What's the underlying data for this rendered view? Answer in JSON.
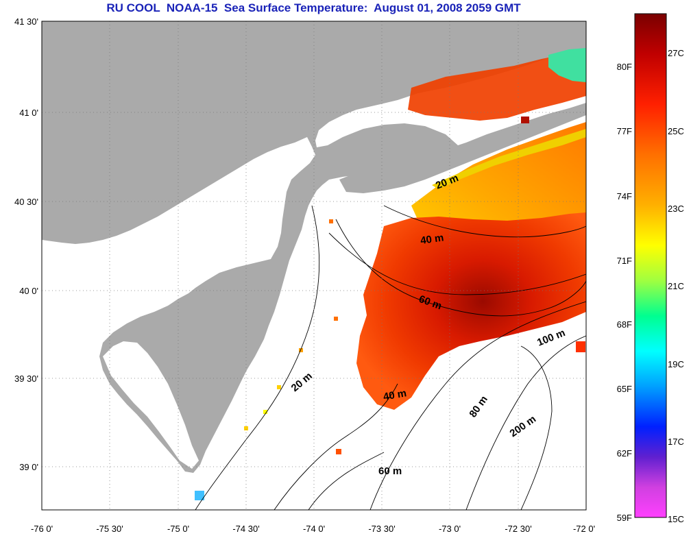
{
  "title": "RU COOL  NOAA-15  Sea Surface Temperature:  August 01, 2008 2059 GMT",
  "latitude_labels": [
    "41 30'",
    "41 0'",
    "40 30'",
    "40 0'",
    "39 30'",
    "39 0'"
  ],
  "longitude_labels": [
    "-76 0'",
    "-75 30'",
    "-75 0'",
    "-74 30'",
    "-74 0'",
    "-73 30'",
    "-73 0'",
    "-72 30'",
    "-72 0'"
  ],
  "contour_labels": [
    "20 m",
    "40 m",
    "60 m",
    "100 m",
    "20 m",
    "40 m",
    "80 m",
    "200 m",
    "60 m"
  ],
  "colorbar": {
    "fahrenheit_labels": [
      "80F",
      "77F",
      "74F",
      "71F",
      "68F",
      "65F",
      "62F",
      "59F"
    ],
    "celsius_labels": [
      "27C",
      "25C",
      "23C",
      "21C",
      "19C",
      "17C",
      "15C"
    ],
    "gradient_colors": [
      "#8b0000",
      "#e00000",
      "#ff4000",
      "#ff8c00",
      "#ffd000",
      "#ffff00",
      "#b0ff30",
      "#00ffb0",
      "#00e0ff",
      "#0070ff",
      "#0000ff",
      "#8000c0",
      "#ff40ff"
    ]
  },
  "colors": {
    "land": "#aaaaaa",
    "no_data": "#ffffff",
    "title": "#1a23b8"
  }
}
